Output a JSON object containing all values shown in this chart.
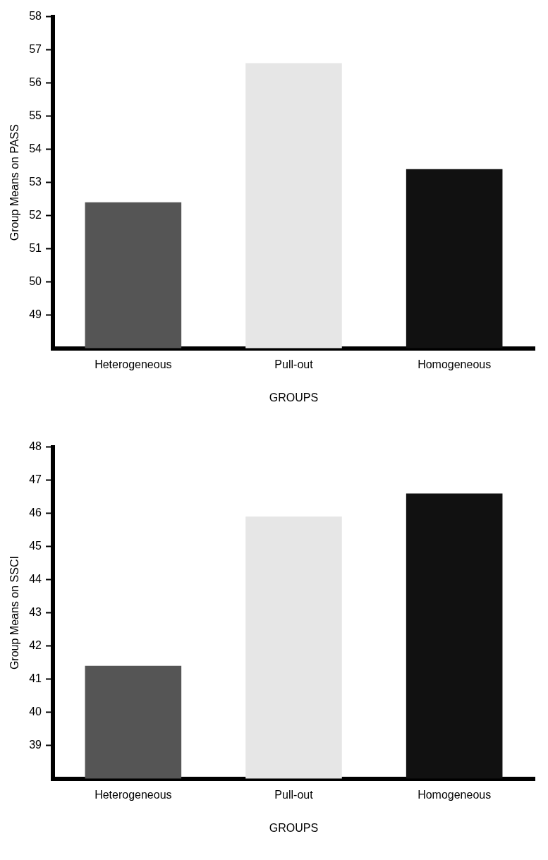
{
  "chart_data": [
    {
      "type": "bar",
      "categories": [
        "Heterogeneous",
        "Pull-out",
        "Homogeneous"
      ],
      "values": [
        52.4,
        56.6,
        53.4
      ],
      "colors": [
        "#555555",
        "#e6e6e6",
        "#111111"
      ],
      "xlabel": "GROUPS",
      "ylabel": "Group Means on PASS",
      "ylim": [
        48,
        58
      ],
      "yticks": [
        49,
        50,
        51,
        52,
        53,
        54,
        55,
        56,
        57,
        58
      ],
      "grid": false,
      "legend": false
    },
    {
      "type": "bar",
      "categories": [
        "Heterogeneous",
        "Pull-out",
        "Homogeneous"
      ],
      "values": [
        41.4,
        45.9,
        46.6
      ],
      "colors": [
        "#555555",
        "#e6e6e6",
        "#111111"
      ],
      "xlabel": "GROUPS",
      "ylabel": "Group Means on SSCI",
      "ylim": [
        38,
        48
      ],
      "yticks": [
        39,
        40,
        41,
        42,
        43,
        44,
        45,
        46,
        47,
        48
      ],
      "grid": false,
      "legend": false
    }
  ]
}
